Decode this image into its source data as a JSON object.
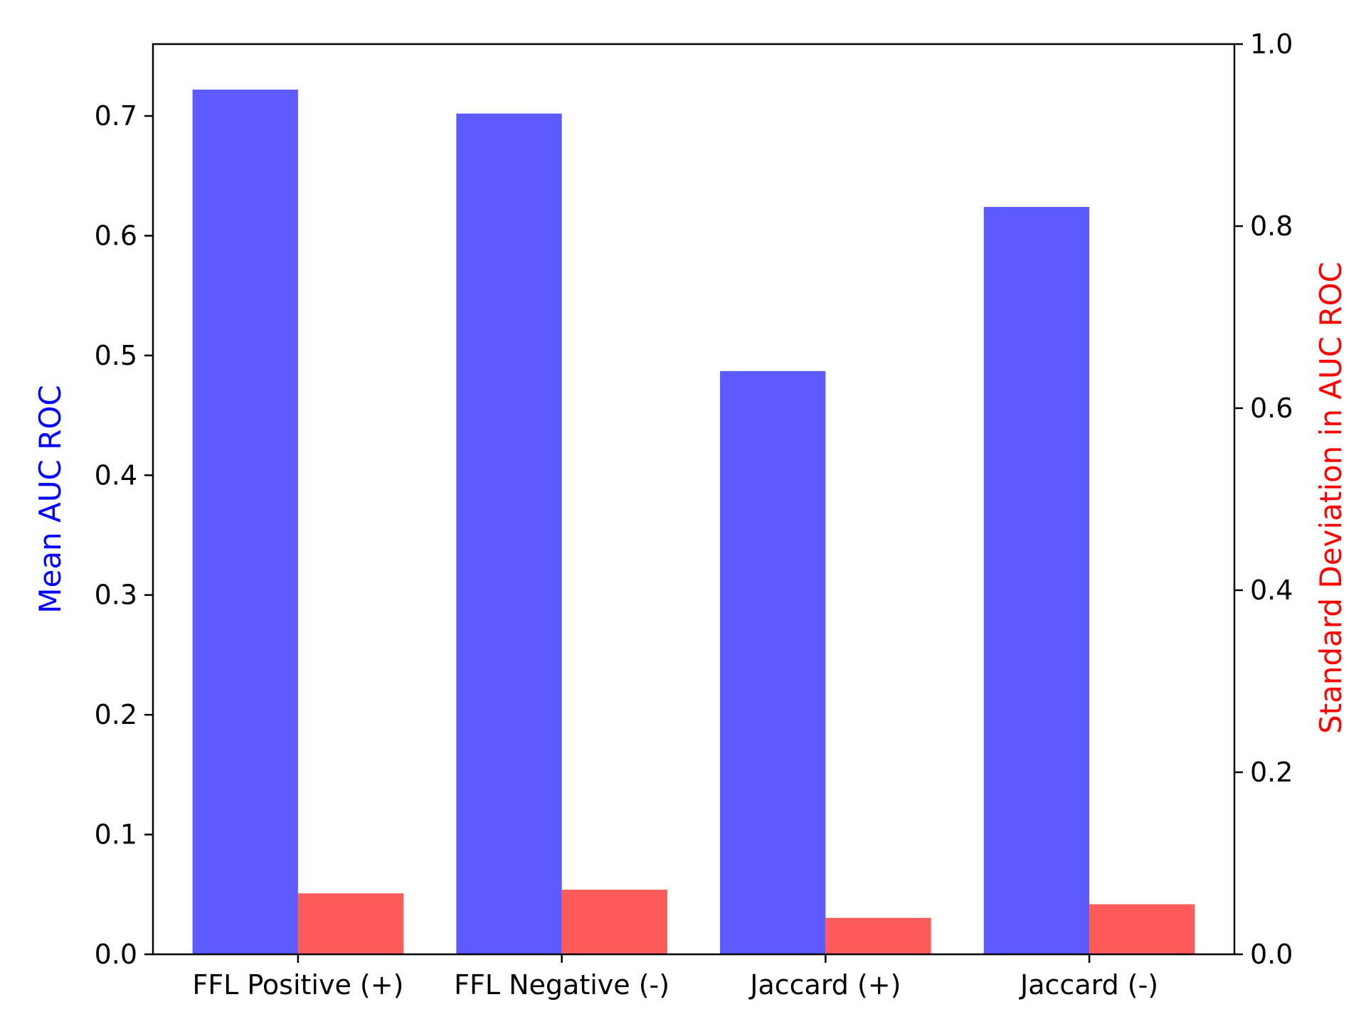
{
  "chart_data": {
    "type": "bar",
    "categories": [
      "FFL Positive (+)",
      "FFL Negative (-)",
      "Jaccard (+)",
      "Jaccard (-)"
    ],
    "series": [
      {
        "values": [
          0.722,
          0.702,
          0.487,
          0.624
        ],
        "color": "#5b5bff",
        "axis": "left"
      },
      {
        "values": [
          0.067,
          0.071,
          0.04,
          0.055
        ],
        "color": "#ff5b5b",
        "axis": "right"
      }
    ],
    "left_axis": {
      "label": "Mean AUC ROC",
      "label_color": "#0000ff",
      "ylim": [
        0,
        0.76
      ],
      "ticks": [
        "0.0",
        "0.1",
        "0.2",
        "0.3",
        "0.4",
        "0.5",
        "0.6",
        "0.7"
      ]
    },
    "right_axis": {
      "label": "Standard Deviation in AUC ROC",
      "label_color": "#ff0000",
      "ylim": [
        0,
        1.0
      ],
      "ticks": [
        "0.0",
        "0.2",
        "0.4",
        "0.6",
        "0.8",
        "1.0"
      ]
    },
    "grid": false
  }
}
